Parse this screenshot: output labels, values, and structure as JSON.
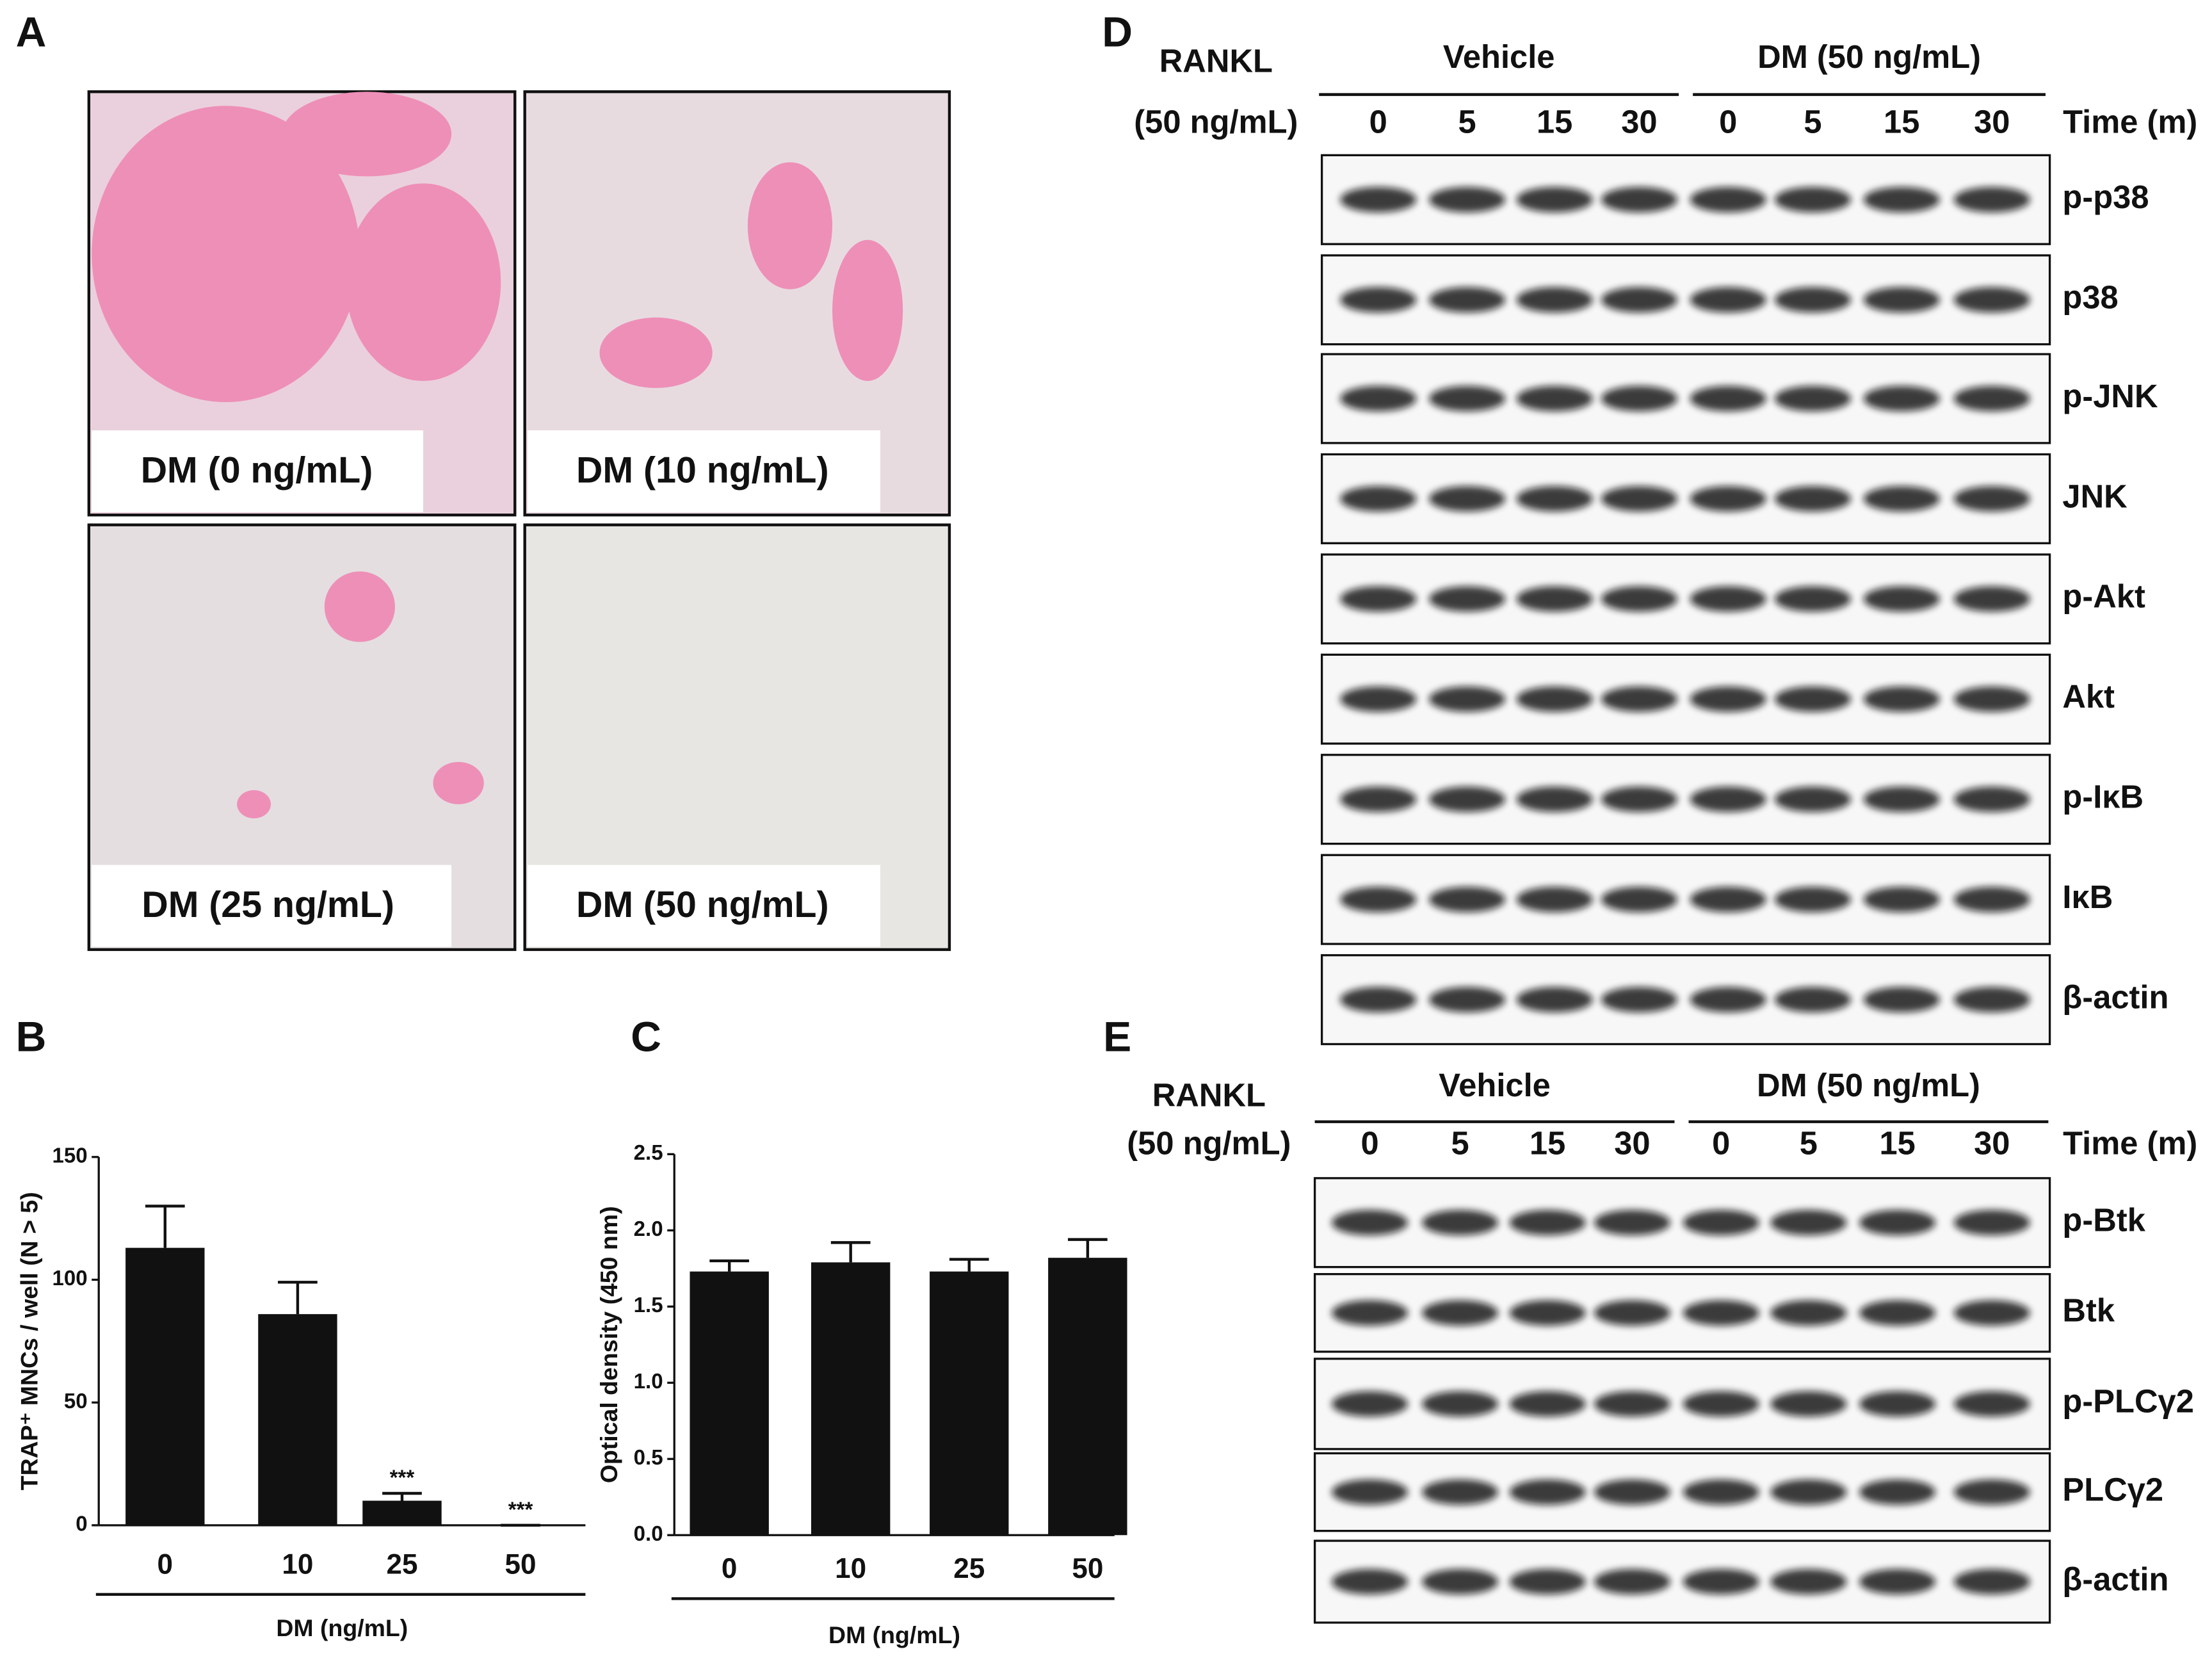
{
  "panel_labels": [
    "A",
    "B",
    "C",
    "D",
    "E"
  ],
  "panel_a": {
    "images": [
      "DM (0 ng/mL)",
      "DM (10 ng/mL)",
      "DM (25 ng/mL)",
      "DM (50 ng/mL)"
    ]
  },
  "chart_data": [
    {
      "type": "bar",
      "y_label": "TRAP⁺ MNCs / well (N > 5)",
      "x_label": "DM (ng/mL)",
      "categories": [
        "0",
        "10",
        "25",
        "50"
      ],
      "values": [
        113,
        86,
        10,
        0
      ],
      "errors": [
        17,
        13,
        3,
        0
      ],
      "significance": [
        {
          "index": 2,
          "label": "***"
        },
        {
          "index": 3,
          "label": "***"
        }
      ],
      "color": "#111111",
      "ylim": [
        0,
        150
      ],
      "yticks": [
        0,
        50,
        100,
        150
      ]
    },
    {
      "type": "bar",
      "y_label": "Optical density (450 nm)",
      "x_label": "DM (ng/mL)",
      "categories": [
        "0",
        "10",
        "25",
        "50"
      ],
      "values": [
        1.73,
        1.79,
        1.73,
        1.82
      ],
      "errors": [
        0.07,
        0.13,
        0.08,
        0.12
      ],
      "color": "#111111",
      "ylim": [
        0,
        2.5
      ],
      "yticks": [
        {
          "value": 0,
          "label": "0.0"
        },
        0.5,
        {
          "value": 1,
          "label": "1.0"
        },
        1.5,
        {
          "value": 2,
          "label": "2.0"
        },
        2.5
      ]
    }
  ],
  "blot_d": {
    "treatment": [
      "RANKL",
      "(50 ng/mL)"
    ],
    "groups": [
      "Vehicle",
      "DM (50 ng/mL)"
    ],
    "lanes": [
      "0",
      "5",
      "15",
      "30",
      "0",
      "5",
      "15",
      "30"
    ],
    "time_label": "Time (m)",
    "rows": [
      "p-p38",
      "p38",
      "p-JNK",
      "JNK",
      "p-Akt",
      "Akt",
      "p-IκB",
      "IκB",
      "β-actin"
    ]
  },
  "blot_e": {
    "treatment": [
      "RANKL",
      "(50 ng/mL)"
    ],
    "groups": [
      "Vehicle",
      "DM (50 ng/mL)"
    ],
    "lanes": [
      "0",
      "5",
      "15",
      "30",
      "0",
      "5",
      "15",
      "30"
    ],
    "time_label": "Time (m)",
    "rows": [
      "p-Btk",
      "Btk",
      "p-PLCγ2",
      "PLCγ2",
      "β-actin"
    ]
  }
}
